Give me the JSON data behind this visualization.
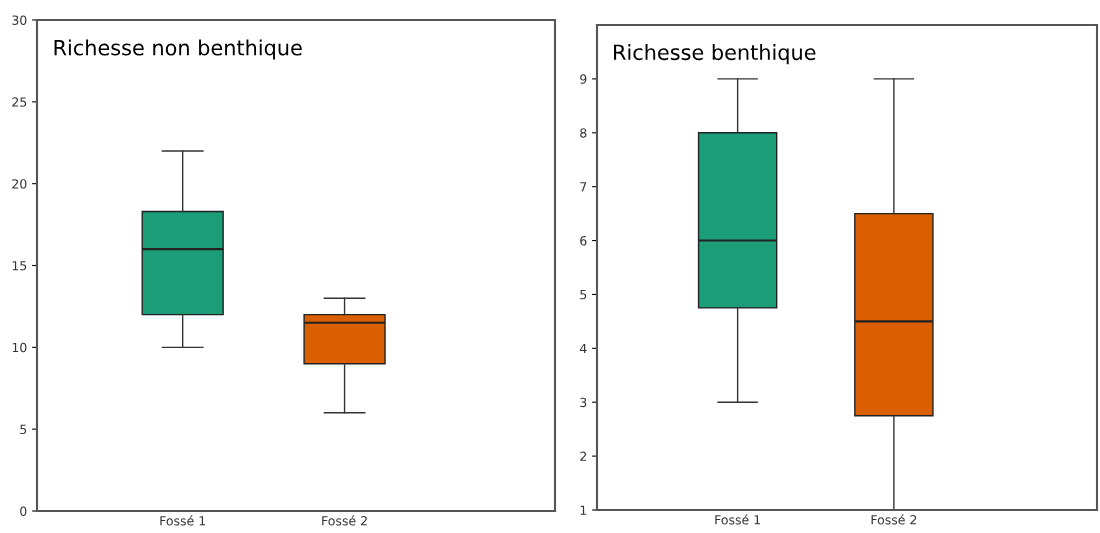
{
  "chart_data": [
    {
      "type": "box",
      "title": "Richesse non benthique",
      "categories": [
        "Fossé 1",
        "Fossé 2"
      ],
      "colors": [
        "#1b9e77",
        "#d95f02"
      ],
      "ylim": [
        0,
        30
      ],
      "yticks": [
        0,
        5,
        10,
        15,
        20,
        25,
        30
      ],
      "grid": false,
      "legend": false,
      "boxes": [
        {
          "low": 10,
          "q1": 12,
          "median": 16,
          "q3": 18.3,
          "high": 22
        },
        {
          "low": 6,
          "q1": 9,
          "median": 11.5,
          "q3": 12,
          "high": 13
        }
      ]
    },
    {
      "type": "box",
      "title": "Richesse benthique",
      "categories": [
        "Fossé 1",
        "Fossé 2"
      ],
      "colors": [
        "#1b9e77",
        "#d95f02"
      ],
      "ylim": [
        1,
        10
      ],
      "yticks": [
        1,
        2,
        3,
        4,
        5,
        6,
        7,
        8,
        9
      ],
      "grid": false,
      "legend": false,
      "boxes": [
        {
          "low": 3,
          "q1": 4.75,
          "median": 6,
          "q3": 8,
          "high": 9
        },
        {
          "low": 1,
          "q1": 2.75,
          "median": 4.5,
          "q3": 6.5,
          "high": 9
        }
      ]
    }
  ]
}
